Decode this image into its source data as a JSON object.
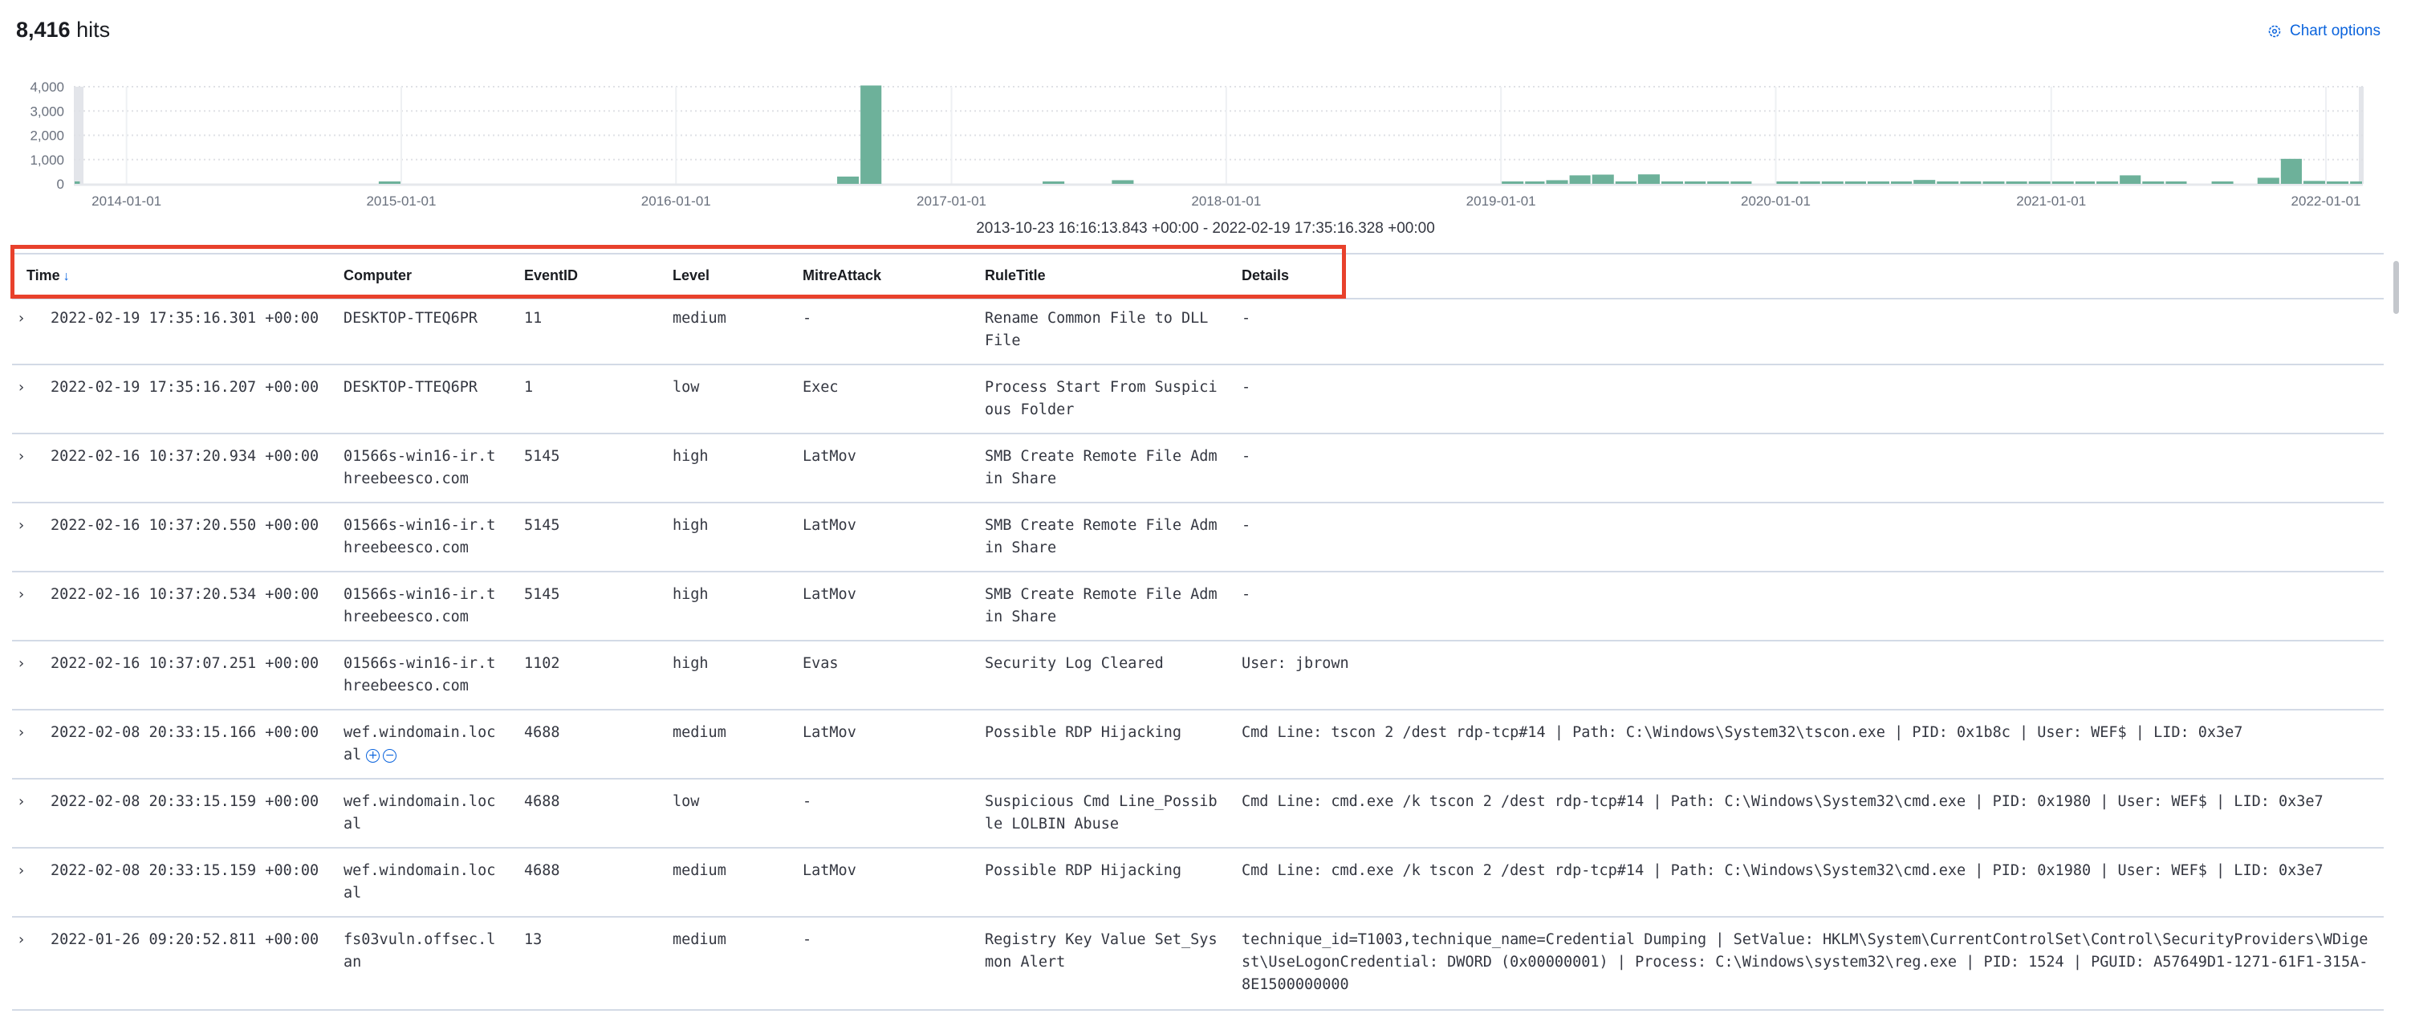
{
  "header": {
    "hits_count": "8,416",
    "hits_label": "hits",
    "chart_options_label": "Chart options",
    "chart_options_icon": "gear-icon",
    "accent": "#0b64dd"
  },
  "time_range": "2013-10-23 16:16:13.843 +00:00 - 2022-02-19 17:35:16.328 +00:00",
  "chart_data": {
    "type": "bar",
    "title": "",
    "xlabel": "",
    "ylabel": "",
    "bar_color": "#6db19a",
    "grid": true,
    "ylim": [
      0,
      4000
    ],
    "xlim": [
      "2013-10-23",
      "2022-02-19"
    ],
    "y_ticks": [
      "0",
      "1,000",
      "2,000",
      "3,000",
      "4,000"
    ],
    "x_ticks": [
      "2014-01-01",
      "2015-01-01",
      "2016-01-01",
      "2017-01-01",
      "2018-01-01",
      "2019-01-01",
      "2020-01-01",
      "2021-01-01",
      "2022-01-01"
    ],
    "categories": [
      "2013-10",
      "2014-12",
      "2016-08",
      "2016-09",
      "2017-05",
      "2017-08",
      "2019-01",
      "2019-02",
      "2019-03",
      "2019-04",
      "2019-05",
      "2019-06",
      "2019-07",
      "2019-08",
      "2019-09",
      "2019-10",
      "2019-11",
      "2020-01",
      "2020-02",
      "2020-03",
      "2020-04",
      "2020-05",
      "2020-06",
      "2020-07",
      "2020-08",
      "2020-09",
      "2020-10",
      "2020-11",
      "2020-12",
      "2021-01",
      "2021-02",
      "2021-03",
      "2021-04",
      "2021-05",
      "2021-06",
      "2021-08",
      "2021-10",
      "2021-11",
      "2021-12",
      "2022-01",
      "2022-02"
    ],
    "values": [
      100,
      100,
      300,
      4050,
      100,
      150,
      100,
      100,
      150,
      350,
      380,
      100,
      390,
      100,
      100,
      100,
      100,
      100,
      100,
      100,
      100,
      100,
      100,
      160,
      100,
      100,
      100,
      100,
      100,
      100,
      100,
      100,
      350,
      100,
      100,
      100,
      250,
      1030,
      120,
      100,
      100
    ]
  },
  "table": {
    "columns": [
      {
        "label": "Time",
        "sort_icon": "arrow-down-icon"
      },
      {
        "label": "Computer"
      },
      {
        "label": "EventID"
      },
      {
        "label": "Level"
      },
      {
        "label": "MitreAttack"
      },
      {
        "label": "RuleTitle"
      },
      {
        "label": "Details"
      }
    ],
    "rows": [
      {
        "time": "2022-02-19 17:35:16.301 +00:00",
        "computer": "DESKTOP-TTEQ6PR",
        "event_id": "11",
        "level": "medium",
        "mitre": " -",
        "rule": "Rename Common File to DLL File",
        "details": " -"
      },
      {
        "time": "2022-02-19 17:35:16.207 +00:00",
        "computer": "DESKTOP-TTEQ6PR",
        "event_id": "1",
        "level": "low",
        "mitre": "Exec",
        "rule": "Process Start From Suspicious Folder",
        "details": " -"
      },
      {
        "time": "2022-02-16 10:37:20.934 +00:00",
        "computer": "01566s-win16-ir.threebeesco.com",
        "event_id": "5145",
        "level": "high",
        "mitre": "LatMov",
        "rule": "SMB Create Remote File Admin Share",
        "details": " -"
      },
      {
        "time": "2022-02-16 10:37:20.550 +00:00",
        "computer": "01566s-win16-ir.threebeesco.com",
        "event_id": "5145",
        "level": "high",
        "mitre": "LatMov",
        "rule": "SMB Create Remote File Admin Share",
        "details": " -"
      },
      {
        "time": "2022-02-16 10:37:20.534 +00:00",
        "computer": "01566s-win16-ir.threebeesco.com",
        "event_id": "5145",
        "level": "high",
        "mitre": "LatMov",
        "rule": "SMB Create Remote File Admin Share",
        "details": " -"
      },
      {
        "time": "2022-02-16 10:37:07.251 +00:00",
        "computer": "01566s-win16-ir.threebeesco.com",
        "event_id": "1102",
        "level": "high",
        "mitre": "Evas",
        "rule": "Security Log Cleared",
        "details": "User: jbrown"
      },
      {
        "time": "2022-02-08 20:33:15.166 +00:00",
        "computer": "wef.windomain.local",
        "event_id": "4688",
        "level": "medium",
        "mitre": "LatMov",
        "rule": "Possible RDP Hijacking",
        "details": "Cmd Line: tscon 2 /dest rdp-tcp#14 | Path: C:\\Windows\\System32\\tscon.exe | PID: 0x1b8c | User: WEF$ | LID: 0x3e7"
      },
      {
        "time": "2022-02-08 20:33:15.159 +00:00",
        "computer": "wef.windomain.local",
        "event_id": "4688",
        "level": "low",
        "mitre": " -",
        "rule": "Suspicious Cmd Line_Possible LOLBIN Abuse",
        "details": "Cmd Line: cmd.exe /k tscon 2 /dest rdp-tcp#14 | Path: C:\\Windows\\System32\\cmd.exe | PID: 0x1980 | User: WEF$ | LID: 0x3e7"
      },
      {
        "time": "2022-02-08 20:33:15.159 +00:00",
        "computer": "wef.windomain.local",
        "event_id": "4688",
        "level": "medium",
        "mitre": "LatMov",
        "rule": "Possible RDP Hijacking",
        "details": "Cmd Line: cmd.exe /k tscon 2 /dest rdp-tcp#14 | Path: C:\\Windows\\System32\\cmd.exe | PID: 0x1980 | User: WEF$ | LID: 0x3e7"
      },
      {
        "time": "2022-01-26 09:20:52.811 +00:00",
        "computer": "fs03vuln.offsec.lan",
        "event_id": "13",
        "level": "medium",
        "mitre": " -",
        "rule": "Registry Key Value Set_Sysmon Alert",
        "details": "technique_id=T1003,technique_name=Credential Dumping | SetValue: HKLM\\System\\CurrentControlSet\\Control\\SecurityProviders\\WDigest\\UseLogonCredential: DWORD (0x00000001) | Process: C:\\Windows\\system32\\reg.exe | PID: 1524 | PGUID: A57649D1-1271-61F1-315A-8E1500000000"
      }
    ]
  }
}
